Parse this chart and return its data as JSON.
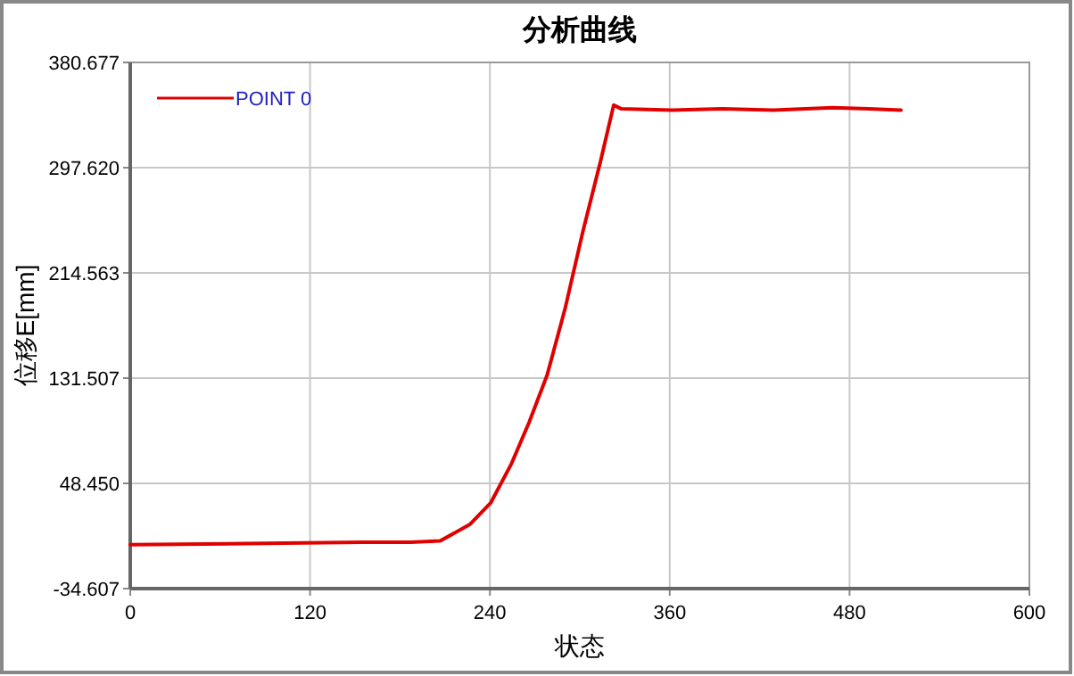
{
  "chart_data": {
    "type": "line",
    "title": "分析曲线",
    "xlabel": "状态",
    "ylabel": "位移E[mm]",
    "xlim": [
      0,
      600
    ],
    "xticks": [
      0,
      120,
      240,
      360,
      480,
      600
    ],
    "ylim": [
      -34.607,
      380.677
    ],
    "yticks": [
      -34.607,
      {
        "value": 48.45,
        "label": "48.450"
      },
      131.507,
      214.563,
      {
        "value": 297.62,
        "label": "297.620"
      },
      380.677
    ],
    "grid": true,
    "legend": "top left",
    "series": [
      {
        "name": "POINT 0",
        "color": "#e00000",
        "x": [
          0,
          155,
          187,
          206.8,
          226.6,
          240.5,
          254.4,
          266.3,
          278.2,
          290.1,
          302,
          313.9,
          322.6,
          327.8,
          361.5,
          395.2,
          429,
          468.7,
          492.5,
          514.3
        ],
        "values": [
          0,
          2,
          2,
          3,
          16,
          33,
          64,
          97,
          134,
          186,
          247,
          303,
          347,
          344,
          343,
          344,
          343,
          345,
          344,
          343
        ]
      }
    ]
  }
}
